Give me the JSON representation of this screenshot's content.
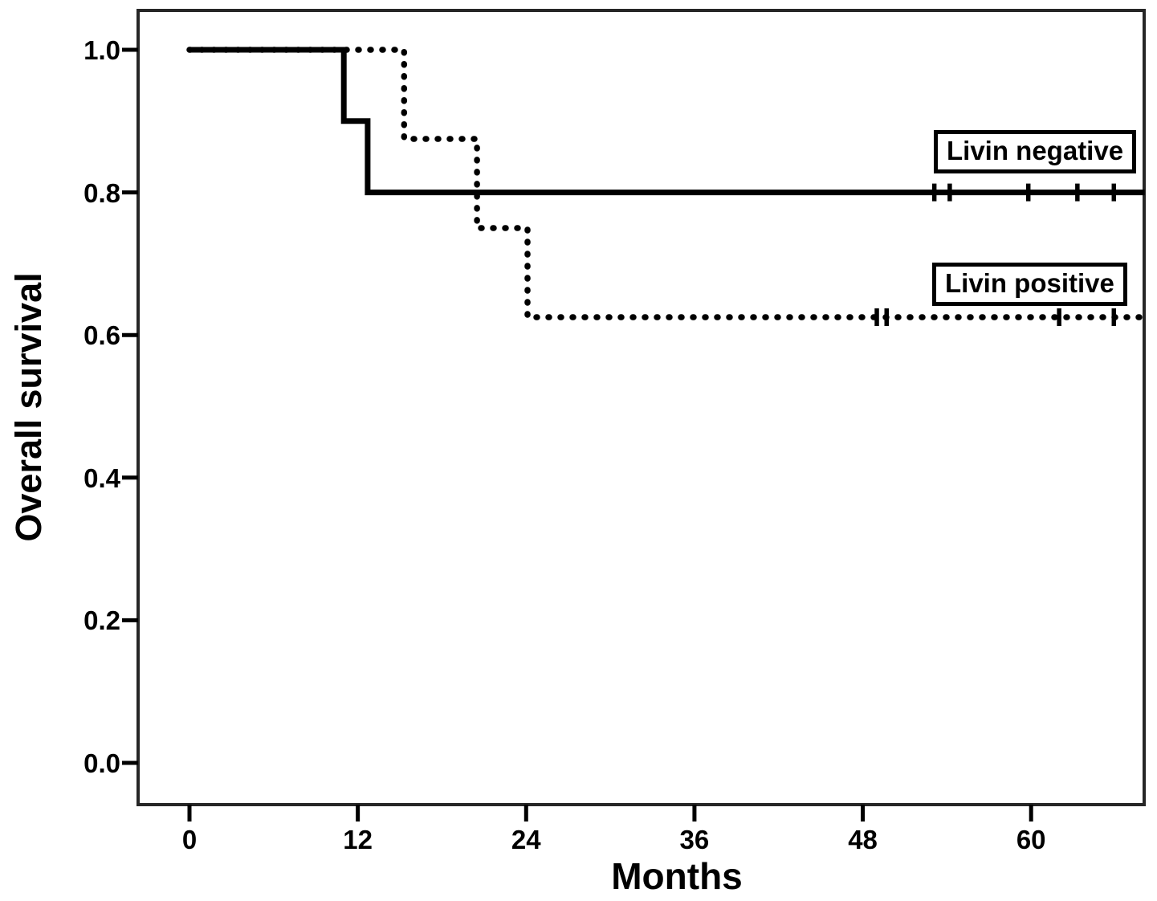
{
  "figure": {
    "background": "#ffffff",
    "frame_color": "#262626",
    "y_axis": {
      "label": "Overall survival",
      "ticks": [
        "1.0",
        "0.8",
        "0.6",
        "0.4",
        "0.2",
        "0.0"
      ],
      "tick_values": [
        1.0,
        0.8,
        0.6,
        0.4,
        0.2,
        0.0
      ]
    },
    "x_axis": {
      "label": "Months",
      "ticks": [
        "0",
        "12",
        "24",
        "36",
        "48",
        "60"
      ],
      "tick_values": [
        0,
        12,
        24,
        36,
        48,
        60
      ]
    }
  },
  "chart_data": {
    "type": "line",
    "subtype": "kaplan-meier-step",
    "title": "",
    "xlabel": "Months",
    "ylabel": "Overall survival",
    "xlim": [
      -3.7,
      68.1
    ],
    "ylim": [
      -0.06,
      1.055
    ],
    "grid": false,
    "legend_position": "inline-right-boxed",
    "line_color": "#000000",
    "series": [
      {
        "name": "Livin negative",
        "line_style": "solid",
        "color": "#000000",
        "steps": [
          [
            0,
            1.0
          ],
          [
            11.0,
            1.0
          ],
          [
            11.0,
            0.9
          ],
          [
            12.7,
            0.9
          ],
          [
            12.7,
            0.8
          ],
          [
            68.1,
            0.8
          ]
        ],
        "censored": [
          [
            53.1,
            0.8
          ],
          [
            54.2,
            0.8
          ],
          [
            59.8,
            0.8
          ],
          [
            63.3,
            0.8
          ],
          [
            65.9,
            0.8
          ]
        ]
      },
      {
        "name": "Livin positive",
        "line_style": "dotted",
        "color": "#000000",
        "steps": [
          [
            0,
            1.0
          ],
          [
            15.3,
            1.0
          ],
          [
            15.3,
            0.875
          ],
          [
            20.5,
            0.875
          ],
          [
            20.5,
            0.75
          ],
          [
            24.1,
            0.75
          ],
          [
            24.1,
            0.625
          ],
          [
            68.1,
            0.625
          ]
        ],
        "censored": [
          [
            49.0,
            0.625
          ],
          [
            49.7,
            0.625
          ],
          [
            62.0,
            0.625
          ],
          [
            65.9,
            0.625
          ]
        ]
      }
    ]
  }
}
